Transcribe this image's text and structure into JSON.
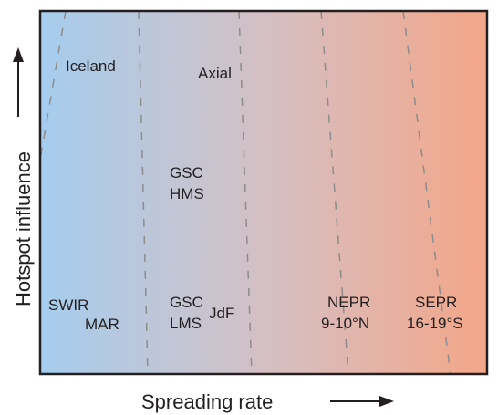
{
  "axes": {
    "x_label": "Spreading rate",
    "y_label": "Hotspot influence"
  },
  "regions": [
    {
      "id": "iceland",
      "lines": [
        "Iceland"
      ]
    },
    {
      "id": "axial",
      "lines": [
        "Axial"
      ]
    },
    {
      "id": "gsc-hms",
      "lines": [
        "GSC",
        "HMS"
      ]
    },
    {
      "id": "swir",
      "lines": [
        "SWIR"
      ]
    },
    {
      "id": "mar",
      "lines": [
        "MAR"
      ]
    },
    {
      "id": "gsc-lms",
      "lines": [
        "GSC",
        "LMS"
      ]
    },
    {
      "id": "jdf",
      "lines": [
        "JdF"
      ]
    },
    {
      "id": "nepr",
      "lines": [
        "NEPR",
        "9-10°N"
      ]
    },
    {
      "id": "sepr",
      "lines": [
        "SEPR",
        "16-19°S"
      ]
    }
  ],
  "colors": {
    "gradient_left": "#a5cdee",
    "gradient_mid": "#d4c0c4",
    "gradient_right": "#f4a688",
    "frame": "#231f20",
    "dash": "#8c8c8c"
  }
}
